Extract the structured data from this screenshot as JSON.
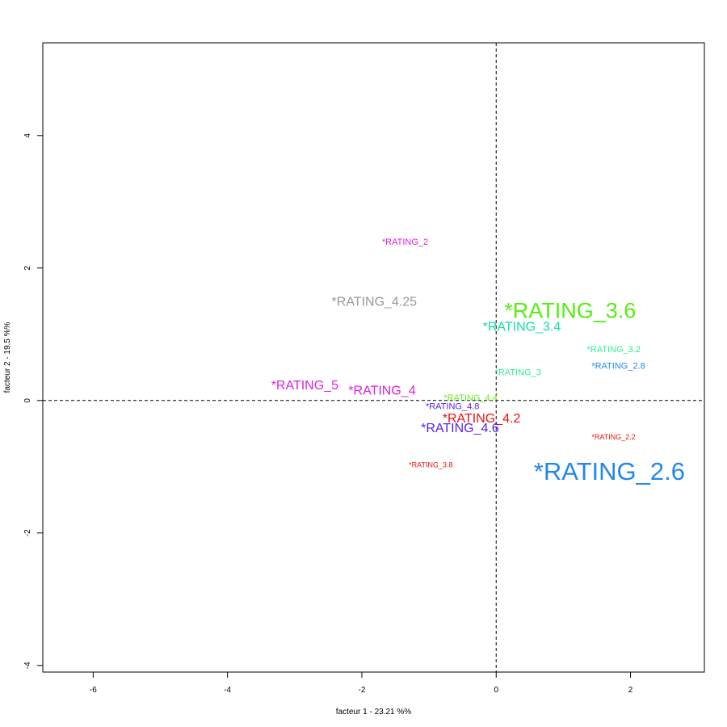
{
  "chart_data": {
    "type": "scatter",
    "title": "",
    "xlabel": "facteur  1  - 23.21 %%",
    "ylabel": "facteur  2  - 19.5 %%",
    "xlim": [
      -6.75,
      3.1
    ],
    "ylim": [
      -4.1,
      5.4
    ],
    "x_ticks": [
      -6,
      -4,
      -2,
      0,
      2
    ],
    "y_ticks": [
      -4,
      -2,
      0,
      2,
      4
    ],
    "x_tick_labels": [
      "-6",
      "-4",
      "-2",
      "0",
      "2"
    ],
    "y_tick_labels": [
      "-4",
      "-2",
      "0",
      "2",
      "4"
    ],
    "reference_lines": {
      "x": 0,
      "y": 0,
      "style": "dashed"
    },
    "grid": false,
    "points": [
      {
        "label": "*RATING_2",
        "x": -1.7,
        "y": 2.35,
        "color": "#e020e0",
        "size": "small"
      },
      {
        "label": "*RATING_4.25",
        "x": -2.45,
        "y": 1.43,
        "color": "#999999",
        "size": "medium"
      },
      {
        "label": "*RATING_3.6",
        "x": 0.12,
        "y": 1.25,
        "color": "#55ee11",
        "size": "xlarge"
      },
      {
        "label": "*RATING_3.4",
        "x": -0.2,
        "y": 1.05,
        "color": "#11ddaa",
        "size": "medium"
      },
      {
        "label": "*RATING_3.2",
        "x": 1.35,
        "y": 0.73,
        "color": "#33ee99",
        "size": "small"
      },
      {
        "label": "*RATING_2.8",
        "x": 1.42,
        "y": 0.48,
        "color": "#2288ee",
        "size": "small"
      },
      {
        "label": "*RATING_3",
        "x": -0.02,
        "y": 0.38,
        "color": "#33ee99",
        "size": "small"
      },
      {
        "label": "*RATING_5",
        "x": -3.35,
        "y": 0.17,
        "color": "#e020e0",
        "size": "medium"
      },
      {
        "label": "*RATING_4",
        "x": -2.2,
        "y": 0.09,
        "color": "#e020e0",
        "size": "medium"
      },
      {
        "label": "*RATING_4.4",
        "x": -0.78,
        "y": 0.0,
        "color": "#66ee22",
        "size": "small"
      },
      {
        "label": "*RATING_4.8",
        "x": -1.05,
        "y": -0.13,
        "color": "#5522ee",
        "size": "small"
      },
      {
        "label": "*RATING_4.2",
        "x": -0.8,
        "y": -0.33,
        "color": "#ee1111",
        "size": "medium"
      },
      {
        "label": "*RATING_4.6",
        "x": -1.12,
        "y": -0.48,
        "color": "#5522ee",
        "size": "medium"
      },
      {
        "label": "*RATING_2.2",
        "x": 1.42,
        "y": -0.59,
        "color": "#ee1111",
        "size": "xsmall"
      },
      {
        "label": "*RATING_3.8",
        "x": -1.3,
        "y": -1.01,
        "color": "#ee1111",
        "size": "xsmall"
      },
      {
        "label": "*RATING_2.6",
        "x": 0.56,
        "y": -1.2,
        "color": "#2288ee",
        "size": "xxlarge"
      }
    ]
  }
}
